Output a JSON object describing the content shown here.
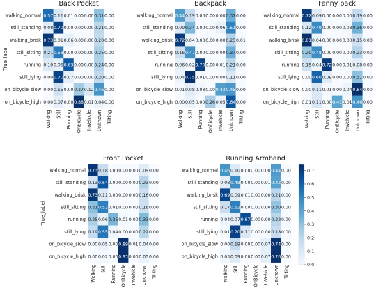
{
  "figure": {
    "ylabel": "True_label",
    "rows": [
      "walking_normal",
      "still_standing",
      "walking_brisk",
      "still_sitting",
      "running",
      "still_lying",
      "on_bicycle_slow",
      "on_bicycle_high"
    ],
    "cols": [
      "Walking",
      "Still",
      "Running",
      "OnBicycle",
      "InVehicle",
      "Unknown",
      "Tilting"
    ],
    "colorbar_ticks": [
      "0.0",
      "0.1",
      "0.2",
      "0.3",
      "0.4",
      "0.5",
      "0.6",
      "0.7"
    ]
  },
  "colors": {
    "low": "#f7fbff",
    "high": "#08306b",
    "ramp": [
      "#f7fbff",
      "#deebf7",
      "#c6dbef",
      "#9ecae1",
      "#6baed6",
      "#4292c6",
      "#2171b5",
      "#08519c",
      "#08306b"
    ]
  },
  "chart_data": [
    {
      "type": "heatmap",
      "title": "Back Pocket",
      "ylabel": "True_label",
      "rows": [
        "walking_normal",
        "still_standing",
        "walking_brisk",
        "still_sitting",
        "running",
        "still_lying",
        "on_bicycle_slow",
        "on_bicycle_high"
      ],
      "cols": [
        "Walking",
        "Still",
        "Running",
        "OnBicycle",
        "InVehicle",
        "Unknown",
        "Tilting"
      ],
      "values": [
        [
          "0.57",
          "0.11",
          "0.01",
          "0.00",
          "0.00",
          "0.31",
          "0.00"
        ],
        [
          "0.08",
          "0.70",
          "0.00",
          "0.00",
          "0.00",
          "0.21",
          "0.00"
        ],
        [
          "0.73",
          "0.01",
          "0.06",
          "0.00",
          "0.00",
          "0.20",
          "0.00"
        ],
        [
          "0.21",
          "0.53",
          "0.00",
          "0.00",
          "0.00",
          "0.25",
          "0.00"
        ],
        [
          "0.10",
          "0.06",
          "0.63",
          "0.00",
          "0.00",
          "0.24",
          "0.00"
        ],
        [
          "0.00",
          "0.70",
          "0.07",
          "0.00",
          "0.00",
          "0.20",
          "0.00"
        ],
        [
          "0.00",
          "0.15",
          "0.00",
          "0.27",
          "0.12",
          "0.46",
          "0.00"
        ],
        [
          "0.00",
          "0.07",
          "0.00",
          "0.88",
          "0.01",
          "0.04",
          "0.00"
        ]
      ]
    },
    {
      "type": "heatmap",
      "title": "Backpack",
      "rows": [
        "walking_normal",
        "still_standing",
        "walking_brisk",
        "still_sitting",
        "running",
        "still_lying",
        "on_bicycle_slow",
        "on_bicycle_high"
      ],
      "cols": [
        "Walking",
        "Still",
        "Running",
        "OnBicycle",
        "InVehicle",
        "Unknown",
        "Tilting"
      ],
      "values": [
        [
          "0.44",
          "0.19",
          "0.00",
          "0.00",
          "0.00",
          "0.37",
          "0.00"
        ],
        [
          "0.09",
          "0.34",
          "0.00",
          "0.00",
          "0.06",
          "0.51",
          "0.00"
        ],
        [
          "0.72",
          "0.04",
          "0.00",
          "0.00",
          "0.00",
          "0.23",
          "0.01"
        ],
        [
          "0.16",
          "0.47",
          "0.00",
          "0.00",
          "0.00",
          "0.37",
          "0.00"
        ],
        [
          "0.06",
          "0.02",
          "0.70",
          "0.00",
          "0.01",
          "0.21",
          "0.00"
        ],
        [
          "0.04",
          "0.75",
          "0.01",
          "0.00",
          "0.00",
          "0.11",
          "0.00"
        ],
        [
          "0.01",
          "0.08",
          "0.03",
          "0.00",
          "0.43",
          "0.45",
          "0.00"
        ],
        [
          "0.00",
          "0.05",
          "0.00",
          "0.26",
          "0.05",
          "0.64",
          "0.00"
        ]
      ]
    },
    {
      "type": "heatmap",
      "title": "Fanny pack",
      "rows": [
        "walking_normal",
        "still_standing",
        "walking_brisk",
        "still_sitting",
        "running",
        "still_lying",
        "on_bicycle_slow",
        "on_bicycle_high"
      ],
      "cols": [
        "Walking",
        "Still",
        "Running",
        "OnBicycle",
        "InVehicle",
        "Unknown",
        "Tilting"
      ],
      "values": [
        [
          "0.72",
          "0.09",
          "0.00",
          "0.00",
          "0.00",
          "0.19",
          "0.00"
        ],
        [
          "0.12",
          "0.49",
          "0.00",
          "0.00",
          "0.03",
          "0.36",
          "0.00"
        ],
        [
          "0.81",
          "0.04",
          "0.00",
          "0.00",
          "0.00",
          "0.15",
          "0.00"
        ],
        [
          "0.29",
          "0.48",
          "0.00",
          "0.00",
          "0.00",
          "0.23",
          "0.00"
        ],
        [
          "0.15",
          "0.04",
          "0.72",
          "0.00",
          "0.01",
          "0.08",
          "0.00"
        ],
        [
          "0.00",
          "0.60",
          "0.09",
          "0.00",
          "0.00",
          "0.31",
          "0.00"
        ],
        [
          "0.00",
          "0.11",
          "0.01",
          "0.00",
          "0.04",
          "0.84",
          "0.00"
        ],
        [
          "0.01",
          "0.11",
          "0.00",
          "0.41",
          "0.01",
          "0.46",
          "0.00"
        ]
      ]
    },
    {
      "type": "heatmap",
      "title": "Front Pocket",
      "ylabel": "True_label",
      "rows": [
        "walking_normal",
        "still_standing",
        "walking_brisk",
        "still_sitting",
        "running",
        "still_lying",
        "on_bicycle_slow",
        "on_bicycle_high"
      ],
      "cols": [
        "Walking",
        "Still",
        "Running",
        "OnBicycle",
        "InVehicle",
        "Unknown",
        "Tilting"
      ],
      "values": [
        [
          "0.73",
          "0.18",
          "0.00",
          "0.00",
          "0.00",
          "0.09",
          "0.00"
        ],
        [
          "0.13",
          "0.64",
          "0.00",
          "0.00",
          "0.00",
          "0.23",
          "0.00"
        ],
        [
          "0.73",
          "0.11",
          "0.00",
          "0.00",
          "0.00",
          "0.16",
          "0.00"
        ],
        [
          "0.31",
          "0.52",
          "0.01",
          "0.00",
          "0.00",
          "0.16",
          "0.00"
        ],
        [
          "0.25",
          "0.06",
          "0.35",
          "0.01",
          "0.00",
          "0.33",
          "0.00"
        ],
        [
          "0.19",
          "0.55",
          "0.04",
          "0.00",
          "0.00",
          "0.22",
          "0.00"
        ],
        [
          "0.00",
          "0.05",
          "0.00",
          "0.89",
          "0.01",
          "0.04",
          "0.00"
        ],
        [
          "0.00",
          "0.02",
          "0.00",
          "0.93",
          "0.00",
          "0.05",
          "0.00"
        ]
      ]
    },
    {
      "type": "heatmap",
      "title": "Running Armband",
      "rows": [
        "walking_normal",
        "still_standing",
        "walking_brisk",
        "still_sitting",
        "running",
        "still_lying",
        "on_bicycle_slow",
        "on_bicycle_high"
      ],
      "cols": [
        "Walking",
        "Still",
        "Running",
        "OnBicycle",
        "InVehicle",
        "Unknown",
        "Tilting"
      ],
      "values": [
        [
          "0.46",
          "0.10",
          "0.00",
          "0.00",
          "0.00",
          "0.44",
          "0.00"
        ],
        [
          "0.08",
          "0.48",
          "0.00",
          "0.00",
          "0.01",
          "0.42",
          "0.00"
        ],
        [
          "0.69",
          "0.09",
          "0.01",
          "0.00",
          "0.00",
          "0.21",
          "0.00"
        ],
        [
          "0.17",
          "0.52",
          "0.00",
          "0.00",
          "0.00",
          "0.30",
          "0.00"
        ],
        [
          "0.04",
          "0.07",
          "0.67",
          "0.00",
          "0.00",
          "0.22",
          "0.00"
        ],
        [
          "0.01",
          "0.70",
          "0.11",
          "0.00",
          "0.00",
          "0.18",
          "0.00"
        ],
        [
          "0.00",
          "0.19",
          "0.00",
          "0.00",
          "0.07",
          "0.74",
          "0.00"
        ],
        [
          "0.03",
          "0.09",
          "0.00",
          "0.00",
          "0.07",
          "0.76",
          "0.00"
        ]
      ],
      "colorbar": {
        "min": 0.0,
        "max": 0.75,
        "ticks": [
          "0.0",
          "0.1",
          "0.2",
          "0.3",
          "0.4",
          "0.5",
          "0.6",
          "0.7"
        ]
      }
    }
  ]
}
